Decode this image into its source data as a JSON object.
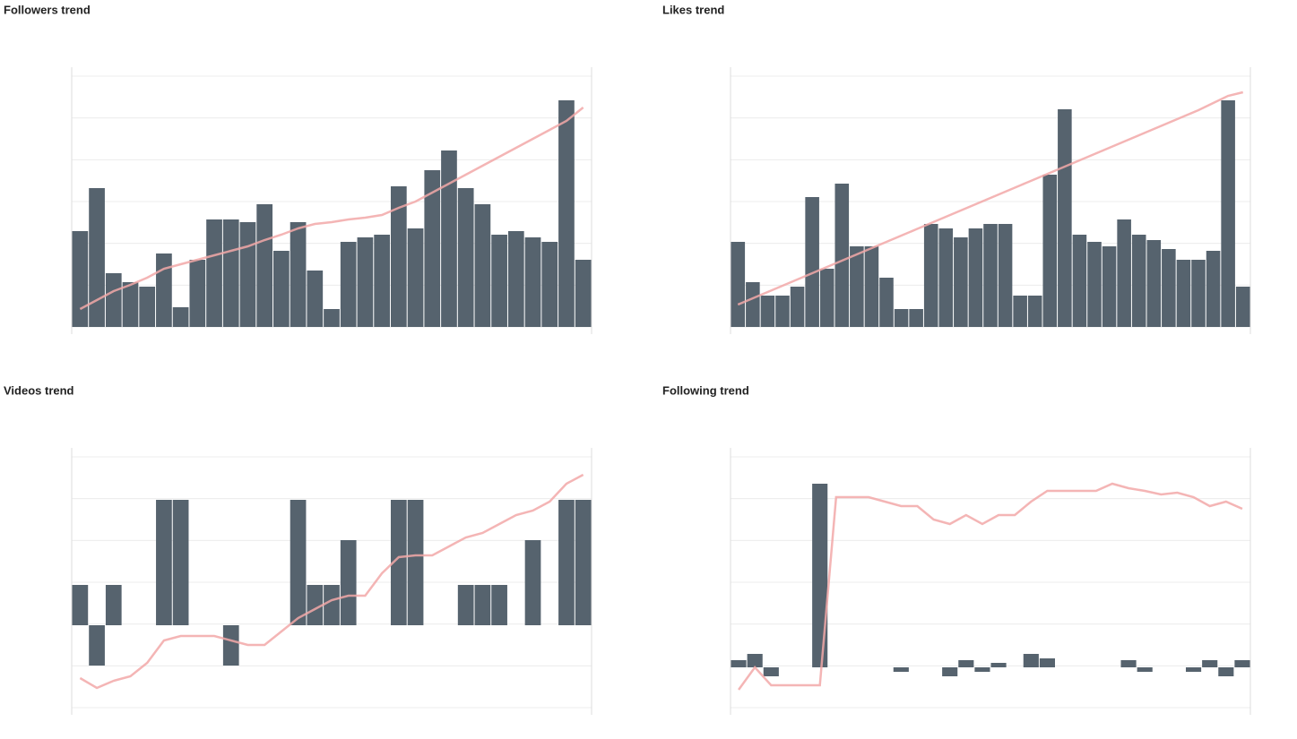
{
  "chart_data": [
    {
      "type": "bar-line",
      "title": "Followers trend",
      "bar_color": "#56636e",
      "line_color": "#f2a8a8",
      "values": [
        107,
        155,
        60,
        50,
        45,
        82,
        22,
        75,
        120,
        120,
        117,
        137,
        85,
        117,
        63,
        20,
        95,
        100,
        103,
        157,
        110,
        175,
        197,
        155,
        137,
        103,
        107,
        100,
        95,
        253,
        75
      ],
      "line": [
        20,
        30,
        40,
        47,
        55,
        65,
        70,
        75,
        80,
        85,
        90,
        97,
        103,
        110,
        115,
        117,
        120,
        122,
        125,
        133,
        140,
        150,
        160,
        170,
        180,
        190,
        200,
        210,
        220,
        230,
        245
      ],
      "ylim": [
        0,
        280
      ],
      "y2lim": [
        0,
        280
      ]
    },
    {
      "type": "bar-line",
      "title": "Likes trend",
      "bar_color": "#56636e",
      "line_color": "#f2a8a8",
      "values": [
        95,
        50,
        35,
        35,
        45,
        145,
        65,
        160,
        90,
        90,
        55,
        20,
        20,
        115,
        110,
        100,
        110,
        115,
        115,
        35,
        35,
        170,
        243,
        103,
        95,
        90,
        120,
        103,
        97,
        87,
        75,
        75,
        85,
        253,
        45
      ],
      "line": [
        25,
        32,
        39,
        46,
        53,
        60,
        67,
        74,
        81,
        88,
        95,
        102,
        109,
        116,
        123,
        130,
        137,
        144,
        151,
        158,
        165,
        172,
        179,
        186,
        193,
        200,
        207,
        214,
        221,
        228,
        235,
        242,
        250,
        258,
        262
      ],
      "ylim": [
        0,
        280
      ],
      "y2lim": [
        0,
        280
      ]
    },
    {
      "type": "bar-line",
      "title": "Videos trend",
      "bar_color": "#56636e",
      "line_color": "#f2a8a8",
      "values": [
        45,
        -45,
        45,
        0,
        0,
        140,
        140,
        0,
        0,
        -45,
        0,
        0,
        0,
        140,
        45,
        45,
        95,
        0,
        0,
        140,
        140,
        0,
        0,
        45,
        45,
        45,
        0,
        95,
        0,
        140,
        140
      ],
      "line": [
        -59,
        -70,
        -62,
        -57,
        -42,
        -17,
        -12,
        -12,
        -12,
        -17,
        -22,
        -22,
        -7,
        8,
        18,
        28,
        33,
        33,
        58,
        76,
        78,
        78,
        88,
        98,
        103,
        113,
        123,
        128,
        138,
        158,
        168
      ],
      "ylim": [
        -92,
        188
      ],
      "y2lim": [
        -92,
        188
      ]
    },
    {
      "type": "bar-line",
      "title": "Following trend",
      "bar_color": "#56636e",
      "line_color": "#f2a8a8",
      "values": [
        8,
        15,
        -10,
        0,
        0,
        205,
        0,
        0,
        0,
        0,
        -5,
        0,
        0,
        -10,
        8,
        -5,
        5,
        0,
        15,
        10,
        0,
        0,
        0,
        0,
        8,
        -5,
        0,
        0,
        -5,
        8,
        -10,
        8
      ],
      "line": [
        -25,
        0,
        -20,
        -20,
        -20,
        -20,
        190,
        190,
        190,
        185,
        180,
        180,
        165,
        160,
        170,
        160,
        170,
        170,
        185,
        197,
        197,
        197,
        197,
        205,
        200,
        197,
        193,
        195,
        190,
        180,
        185,
        177
      ],
      "ylim": [
        -45,
        235
      ],
      "y2lim": [
        -45,
        235
      ]
    }
  ]
}
